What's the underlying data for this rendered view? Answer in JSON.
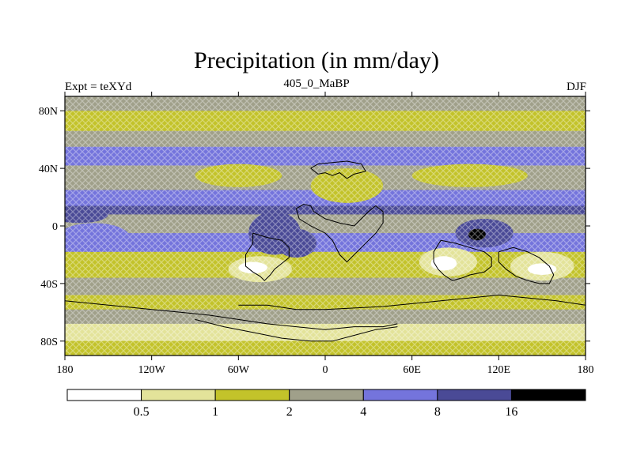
{
  "chart_data": {
    "type": "heatmap",
    "title": "Precipitation (in mm/day)",
    "left_string": "Expt = teXYd",
    "center_string": "405_0_MaBP",
    "right_string": "DJF",
    "x_ticks": [
      {
        "value": -180,
        "label": "180"
      },
      {
        "value": -120,
        "label": "120W"
      },
      {
        "value": -60,
        "label": "60W"
      },
      {
        "value": 0,
        "label": "0"
      },
      {
        "value": 60,
        "label": "60E"
      },
      {
        "value": 120,
        "label": "120E"
      },
      {
        "value": 180,
        "label": "180"
      }
    ],
    "y_ticks": [
      {
        "value": 80,
        "label": "80N"
      },
      {
        "value": 40,
        "label": "40N"
      },
      {
        "value": 0,
        "label": "0"
      },
      {
        "value": -40,
        "label": "40S"
      },
      {
        "value": -80,
        "label": "80S"
      }
    ],
    "xlim": [
      -180,
      180
    ],
    "ylim": [
      -90,
      90
    ],
    "colorbar": {
      "levels": [
        0.5,
        1,
        2,
        4,
        8,
        16
      ],
      "labels": [
        "0.5",
        "1",
        "2",
        "4",
        "8",
        "16"
      ],
      "colors": [
        "#ffffff",
        "#e3e39a",
        "#c3c32a",
        "#a0a08a",
        "#7474dc",
        "#4a4a96",
        "#000000"
      ]
    },
    "zonal_bands": [
      {
        "lat_from": 90,
        "lat_to": 80,
        "class": 3
      },
      {
        "lat_from": 80,
        "lat_to": 66,
        "class": 2
      },
      {
        "lat_from": 66,
        "lat_to": 55,
        "class": 3
      },
      {
        "lat_from": 55,
        "lat_to": 42,
        "class": 4
      },
      {
        "lat_from": 42,
        "lat_to": 25,
        "class": 3
      },
      {
        "lat_from": 25,
        "lat_to": 14,
        "class": 4
      },
      {
        "lat_from": 14,
        "lat_to": 8,
        "class": 5
      },
      {
        "lat_from": 8,
        "lat_to": -5,
        "class": 3
      },
      {
        "lat_from": -5,
        "lat_to": -18,
        "class": 4
      },
      {
        "lat_from": -18,
        "lat_to": -36,
        "class": 2
      },
      {
        "lat_from": -36,
        "lat_to": -48,
        "class": 3
      },
      {
        "lat_from": -48,
        "lat_to": -58,
        "class": 2
      },
      {
        "lat_from": -58,
        "lat_to": -68,
        "class": 3
      },
      {
        "lat_from": -68,
        "lat_to": -80,
        "class": 1
      },
      {
        "lat_from": -80,
        "lat_to": -90,
        "class": 2
      }
    ],
    "regions": [
      {
        "lon": -170,
        "lat": 8,
        "rx": 20,
        "ry": 6,
        "class": 5
      },
      {
        "lon": -160,
        "lat": -8,
        "rx": 25,
        "ry": 10,
        "class": 4
      },
      {
        "lon": -35,
        "lat": -5,
        "rx": 18,
        "ry": 15,
        "class": 5
      },
      {
        "lon": -20,
        "lat": -12,
        "rx": 14,
        "ry": 10,
        "class": 5
      },
      {
        "lon": 110,
        "lat": -5,
        "rx": 20,
        "ry": 10,
        "class": 5
      },
      {
        "lon": 105,
        "lat": -6,
        "rx": 6,
        "ry": 4,
        "class": 6
      },
      {
        "lon": -45,
        "lat": -30,
        "rx": 22,
        "ry": 9,
        "class": 1
      },
      {
        "lon": -50,
        "lat": -29,
        "rx": 10,
        "ry": 4,
        "class": 0
      },
      {
        "lon": 85,
        "lat": -25,
        "rx": 20,
        "ry": 10,
        "class": 1
      },
      {
        "lon": 82,
        "lat": -26,
        "rx": 9,
        "ry": 5,
        "class": 0
      },
      {
        "lon": 150,
        "lat": -28,
        "rx": 22,
        "ry": 10,
        "class": 1
      },
      {
        "lon": 150,
        "lat": -30,
        "rx": 10,
        "ry": 4,
        "class": 0
      },
      {
        "lon": -60,
        "lat": 35,
        "rx": 30,
        "ry": 8,
        "class": 2
      },
      {
        "lon": 15,
        "lat": 28,
        "rx": 25,
        "ry": 12,
        "class": 2
      },
      {
        "lon": 100,
        "lat": 35,
        "rx": 40,
        "ry": 8,
        "class": 2
      }
    ],
    "coastlines": [
      [
        [
          -10,
          40
        ],
        [
          -5,
          43
        ],
        [
          5,
          44
        ],
        [
          15,
          45
        ],
        [
          25,
          43
        ],
        [
          28,
          38
        ],
        [
          20,
          36
        ],
        [
          15,
          33
        ],
        [
          10,
          37
        ],
        [
          5,
          35
        ],
        [
          0,
          37
        ],
        [
          -5,
          36
        ],
        [
          -10,
          40
        ]
      ],
      [
        [
          -20,
          12
        ],
        [
          -15,
          15
        ],
        [
          -10,
          14
        ],
        [
          -8,
          10
        ],
        [
          0,
          5
        ],
        [
          10,
          2
        ],
        [
          20,
          0
        ],
        [
          25,
          5
        ],
        [
          30,
          10
        ],
        [
          35,
          14
        ],
        [
          40,
          10
        ],
        [
          40,
          2
        ],
        [
          35,
          -5
        ],
        [
          30,
          -10
        ],
        [
          25,
          -15
        ],
        [
          20,
          -20
        ],
        [
          15,
          -25
        ],
        [
          10,
          -20
        ],
        [
          5,
          -10
        ],
        [
          0,
          -5
        ],
        [
          -10,
          0
        ],
        [
          -18,
          5
        ],
        [
          -20,
          12
        ]
      ],
      [
        [
          -50,
          -5
        ],
        [
          -40,
          -8
        ],
        [
          -30,
          -10
        ],
        [
          -25,
          -15
        ],
        [
          -25,
          -22
        ],
        [
          -30,
          -26
        ],
        [
          -35,
          -30
        ],
        [
          -38,
          -34
        ],
        [
          -42,
          -38
        ],
        [
          -45,
          -35
        ],
        [
          -50,
          -32
        ],
        [
          -55,
          -28
        ],
        [
          -55,
          -20
        ],
        [
          -50,
          -12
        ],
        [
          -50,
          -5
        ]
      ],
      [
        [
          80,
          -10
        ],
        [
          90,
          -12
        ],
        [
          100,
          -15
        ],
        [
          110,
          -18
        ],
        [
          115,
          -22
        ],
        [
          115,
          -28
        ],
        [
          110,
          -32
        ],
        [
          100,
          -34
        ],
        [
          95,
          -36
        ],
        [
          88,
          -38
        ],
        [
          82,
          -34
        ],
        [
          78,
          -30
        ],
        [
          75,
          -25
        ],
        [
          75,
          -18
        ],
        [
          80,
          -10
        ]
      ],
      [
        [
          120,
          -18
        ],
        [
          130,
          -15
        ],
        [
          140,
          -18
        ],
        [
          148,
          -22
        ],
        [
          155,
          -28
        ],
        [
          158,
          -34
        ],
        [
          155,
          -40
        ],
        [
          148,
          -40
        ],
        [
          140,
          -38
        ],
        [
          132,
          -35
        ],
        [
          125,
          -30
        ],
        [
          120,
          -25
        ],
        [
          120,
          -18
        ]
      ],
      [
        [
          -60,
          -55
        ],
        [
          -40,
          -55
        ],
        [
          -20,
          -58
        ],
        [
          0,
          -58
        ],
        [
          20,
          -57
        ],
        [
          40,
          -56
        ],
        [
          60,
          -54
        ],
        [
          80,
          -52
        ],
        [
          100,
          -50
        ],
        [
          120,
          -48
        ],
        [
          140,
          -50
        ],
        [
          160,
          -52
        ],
        [
          180,
          -55
        ]
      ],
      [
        [
          -180,
          -52
        ],
        [
          -160,
          -54
        ],
        [
          -140,
          -56
        ],
        [
          -120,
          -58
        ],
        [
          -100,
          -60
        ],
        [
          -80,
          -62
        ],
        [
          -60,
          -65
        ],
        [
          -40,
          -68
        ],
        [
          -20,
          -70
        ],
        [
          0,
          -72
        ],
        [
          20,
          -70
        ],
        [
          40,
          -70
        ],
        [
          50,
          -68
        ]
      ],
      [
        [
          -90,
          -65
        ],
        [
          -70,
          -70
        ],
        [
          -50,
          -74
        ],
        [
          -30,
          -78
        ],
        [
          -10,
          -80
        ],
        [
          5,
          -80
        ],
        [
          20,
          -76
        ],
        [
          35,
          -72
        ],
        [
          50,
          -70
        ]
      ]
    ]
  }
}
